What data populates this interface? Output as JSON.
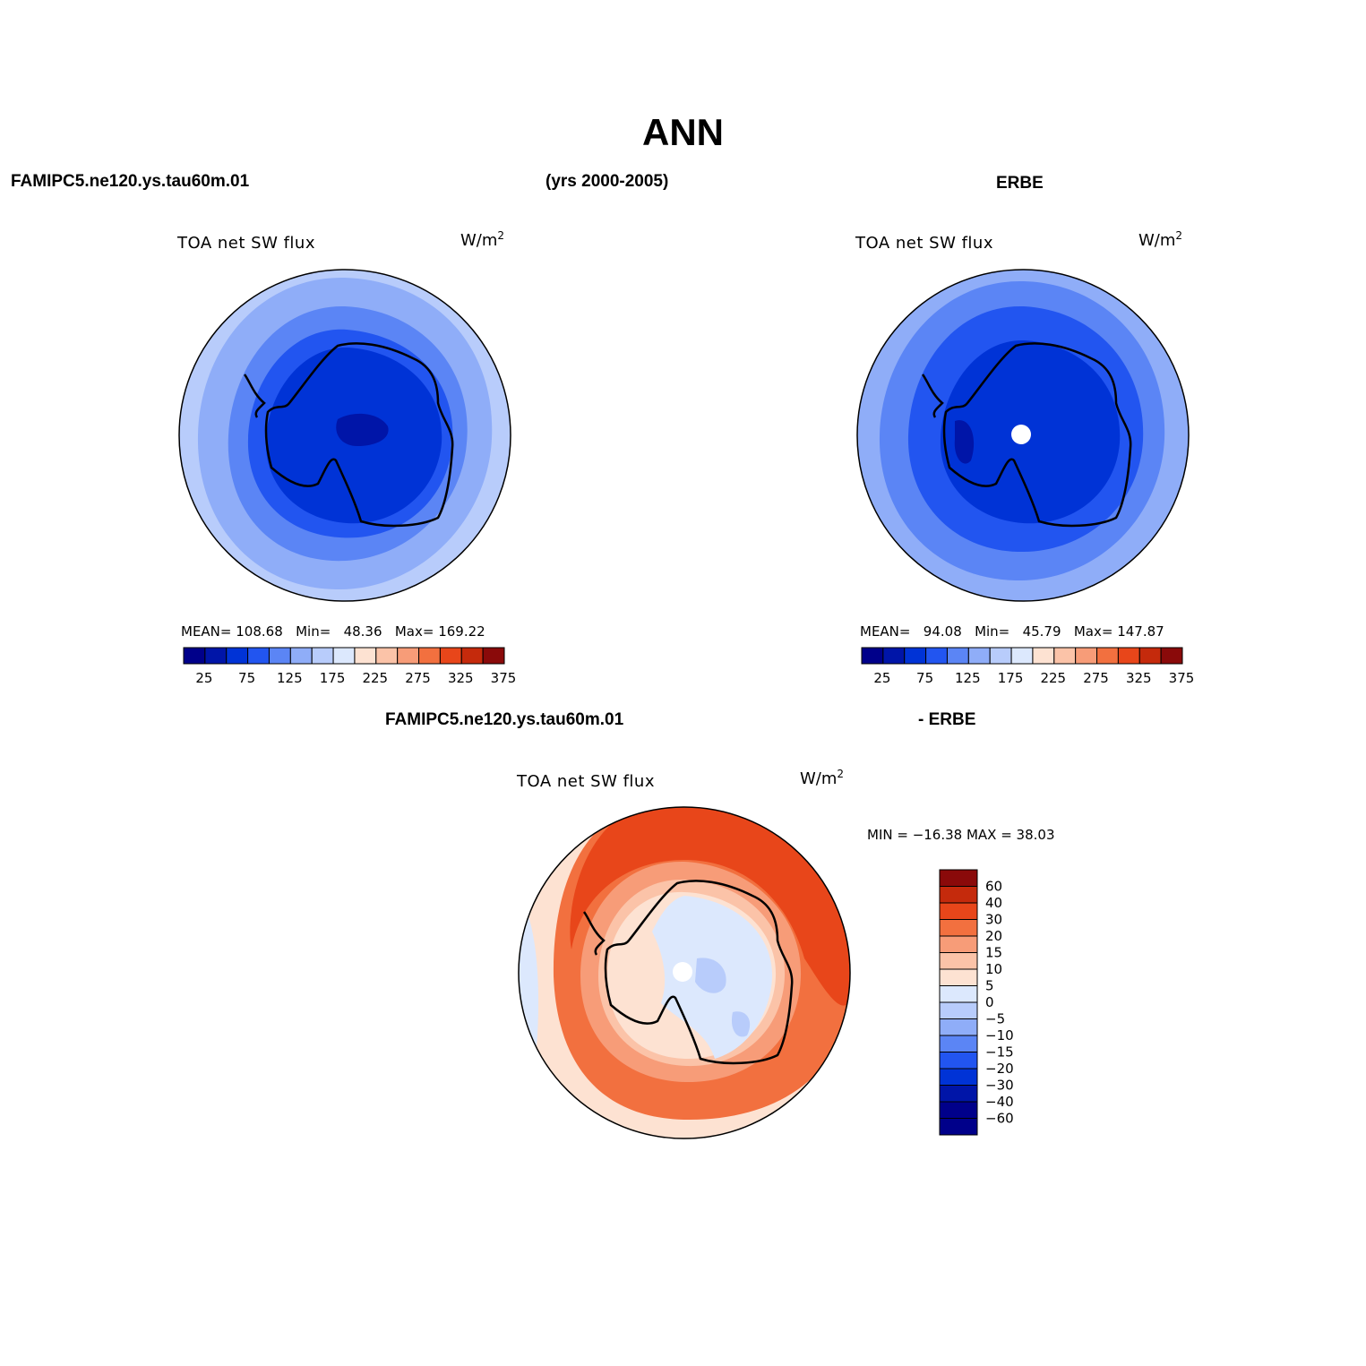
{
  "title": "ANN",
  "header": {
    "case_name": "FAMIPC5.ne120.ys.tau60m.01",
    "years": "(yrs 2000-2005)",
    "obs_name": "ERBE",
    "diff_case": "FAMIPC5.ne120.ys.tau60m.01",
    "diff_obs": "- ERBE"
  },
  "panels": [
    {
      "variable": "TOA net SW flux",
      "units": "W/m",
      "units_exp": "2",
      "stats": {
        "mean_label": "MEAN=",
        "mean": "108.68",
        "min_label": "Min=",
        "min": "48.36",
        "max_label": "Max=",
        "max": "169.22"
      }
    },
    {
      "variable": "TOA net SW flux",
      "units": "W/m",
      "units_exp": "2",
      "stats": {
        "mean_label": "MEAN=",
        "mean": "94.08",
        "min_label": "Min=",
        "min": "45.79",
        "max_label": "Max=",
        "max": "147.87"
      }
    },
    {
      "variable": "TOA net SW flux",
      "units": "W/m",
      "units_exp": "2",
      "minmax": "MIN = −16.38 MAX =   38.03"
    }
  ],
  "colorbar_abs": {
    "colors": [
      "#00008a",
      "#0015a8",
      "#0033d6",
      "#2255f0",
      "#5b85f5",
      "#8fadf8",
      "#b8ccfb",
      "#dce8fd",
      "#fde2d2",
      "#fbc3a8",
      "#f79c78",
      "#f2703f",
      "#e8461a",
      "#c52a0c",
      "#8a0a0a"
    ],
    "labels": [
      "25",
      "75",
      "125",
      "175",
      "225",
      "275",
      "325",
      "375"
    ]
  },
  "colorbar_diff": {
    "colors": [
      "#00008a",
      "#0015a8",
      "#0033d6",
      "#2255f0",
      "#5b85f5",
      "#8fadf8",
      "#b8ccfb",
      "#dce8fd",
      "#fde2d2",
      "#fbc3a8",
      "#f79c78",
      "#f2703f",
      "#e8461a",
      "#c52a0c",
      "#8a0a0a"
    ],
    "labels": [
      "60",
      "40",
      "30",
      "20",
      "15",
      "10",
      "5",
      "0",
      "−5",
      "−10",
      "−15",
      "−20",
      "−30",
      "−40",
      "−60"
    ]
  }
}
